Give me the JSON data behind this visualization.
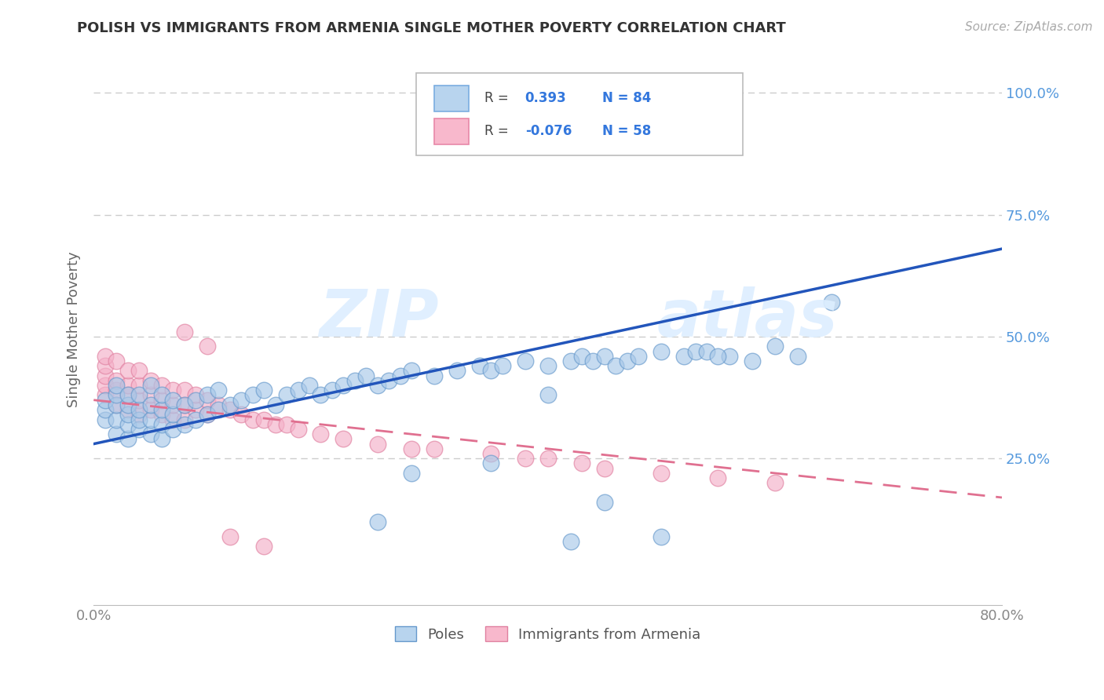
{
  "title": "POLISH VS IMMIGRANTS FROM ARMENIA SINGLE MOTHER POVERTY CORRELATION CHART",
  "source": "Source: ZipAtlas.com",
  "ylabel": "Single Mother Poverty",
  "xlim": [
    0.0,
    0.8
  ],
  "ylim": [
    -0.05,
    1.08
  ],
  "poles_color": "#a8c8e8",
  "poles_edge": "#6699cc",
  "armenia_color": "#f4b0c8",
  "armenia_edge": "#e080a0",
  "poles_line_color": "#2255bb",
  "armenia_line_color": "#e07090",
  "watermark_zip": "ZIP",
  "watermark_atlas": "atlas",
  "background": "#ffffff",
  "poles_R": 0.393,
  "poles_N": 84,
  "armenia_R": -0.076,
  "armenia_N": 58,
  "poles_line_x0": 0.0,
  "poles_line_y0": 0.28,
  "poles_line_x1": 0.8,
  "poles_line_y1": 0.68,
  "armenia_line_x0": 0.0,
  "armenia_line_y0": 0.37,
  "armenia_line_x1": 0.8,
  "armenia_line_y1": 0.17,
  "poles_scatter_x": [
    0.01,
    0.01,
    0.01,
    0.02,
    0.02,
    0.02,
    0.02,
    0.02,
    0.03,
    0.03,
    0.03,
    0.03,
    0.03,
    0.04,
    0.04,
    0.04,
    0.04,
    0.05,
    0.05,
    0.05,
    0.05,
    0.06,
    0.06,
    0.06,
    0.06,
    0.07,
    0.07,
    0.07,
    0.08,
    0.08,
    0.09,
    0.09,
    0.1,
    0.1,
    0.11,
    0.11,
    0.12,
    0.13,
    0.14,
    0.15,
    0.16,
    0.17,
    0.18,
    0.19,
    0.2,
    0.21,
    0.22,
    0.23,
    0.24,
    0.25,
    0.26,
    0.27,
    0.28,
    0.3,
    0.32,
    0.34,
    0.35,
    0.36,
    0.38,
    0.4,
    0.42,
    0.43,
    0.44,
    0.45,
    0.46,
    0.47,
    0.48,
    0.5,
    0.52,
    0.53,
    0.54,
    0.56,
    0.58,
    0.6,
    0.4,
    0.28,
    0.25,
    0.35,
    0.42,
    0.45,
    0.5,
    0.55,
    0.62,
    0.65
  ],
  "poles_scatter_y": [
    0.33,
    0.35,
    0.37,
    0.3,
    0.33,
    0.36,
    0.38,
    0.4,
    0.29,
    0.32,
    0.34,
    0.36,
    0.38,
    0.31,
    0.33,
    0.35,
    0.38,
    0.3,
    0.33,
    0.36,
    0.4,
    0.29,
    0.32,
    0.35,
    0.38,
    0.31,
    0.34,
    0.37,
    0.32,
    0.36,
    0.33,
    0.37,
    0.34,
    0.38,
    0.35,
    0.39,
    0.36,
    0.37,
    0.38,
    0.39,
    0.36,
    0.38,
    0.39,
    0.4,
    0.38,
    0.39,
    0.4,
    0.41,
    0.42,
    0.4,
    0.41,
    0.42,
    0.43,
    0.42,
    0.43,
    0.44,
    0.43,
    0.44,
    0.45,
    0.44,
    0.45,
    0.46,
    0.45,
    0.46,
    0.44,
    0.45,
    0.46,
    0.47,
    0.46,
    0.47,
    0.47,
    0.46,
    0.45,
    0.48,
    0.38,
    0.22,
    0.12,
    0.24,
    0.08,
    0.16,
    0.09,
    0.46,
    0.46,
    0.57
  ],
  "armenia_scatter_x": [
    0.01,
    0.01,
    0.01,
    0.01,
    0.01,
    0.02,
    0.02,
    0.02,
    0.02,
    0.03,
    0.03,
    0.03,
    0.03,
    0.04,
    0.04,
    0.04,
    0.04,
    0.05,
    0.05,
    0.05,
    0.06,
    0.06,
    0.06,
    0.07,
    0.07,
    0.07,
    0.08,
    0.08,
    0.08,
    0.09,
    0.09,
    0.1,
    0.1,
    0.11,
    0.12,
    0.13,
    0.14,
    0.15,
    0.16,
    0.17,
    0.18,
    0.2,
    0.22,
    0.25,
    0.28,
    0.3,
    0.35,
    0.38,
    0.4,
    0.43,
    0.45,
    0.5,
    0.55,
    0.6,
    0.08,
    0.1,
    0.12,
    0.15
  ],
  "armenia_scatter_y": [
    0.38,
    0.4,
    0.42,
    0.44,
    0.46,
    0.36,
    0.39,
    0.41,
    0.45,
    0.35,
    0.38,
    0.4,
    0.43,
    0.34,
    0.37,
    0.4,
    0.43,
    0.35,
    0.38,
    0.41,
    0.34,
    0.37,
    0.4,
    0.33,
    0.36,
    0.39,
    0.33,
    0.36,
    0.39,
    0.35,
    0.38,
    0.34,
    0.37,
    0.36,
    0.35,
    0.34,
    0.33,
    0.33,
    0.32,
    0.32,
    0.31,
    0.3,
    0.29,
    0.28,
    0.27,
    0.27,
    0.26,
    0.25,
    0.25,
    0.24,
    0.23,
    0.22,
    0.21,
    0.2,
    0.51,
    0.48,
    0.09,
    0.07
  ]
}
